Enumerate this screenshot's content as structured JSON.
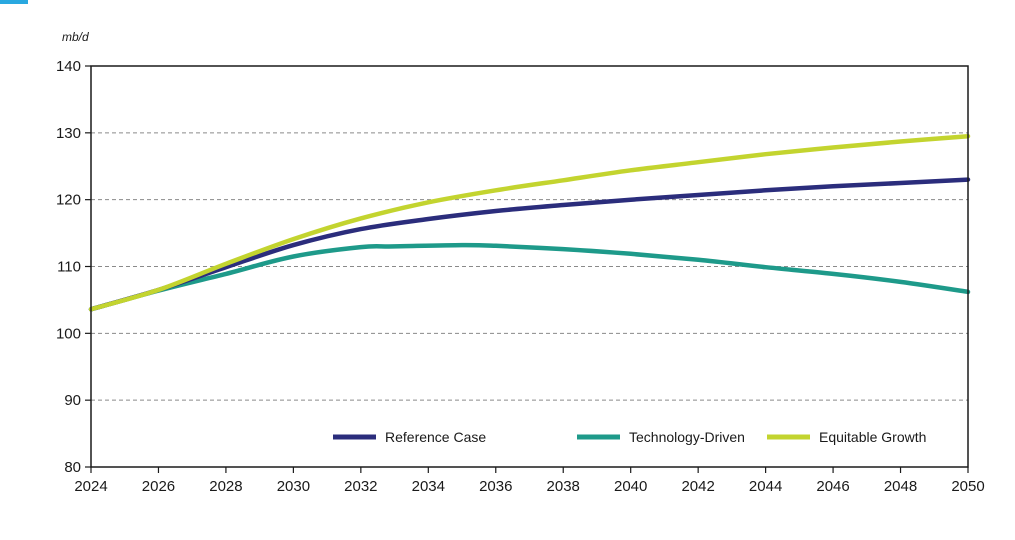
{
  "chart_data": {
    "type": "line",
    "ylabel": "mb/d",
    "xlim": [
      2024,
      2050
    ],
    "ylim": [
      80,
      140
    ],
    "x_ticks": [
      "2024",
      "2026",
      "2028",
      "2030",
      "2032",
      "2034",
      "2036",
      "2038",
      "2040",
      "2042",
      "2044",
      "2046",
      "2048",
      "2050"
    ],
    "y_ticks": [
      "80",
      "90",
      "100",
      "110",
      "120",
      "130",
      "140"
    ],
    "grid": "horizontal dashed",
    "legend_position": "bottom-right",
    "series": [
      {
        "name": "Reference Case",
        "color": "#2b2d7c",
        "x": [
          2024,
          2026,
          2028,
          2030,
          2032,
          2034,
          2036,
          2038,
          2040,
          2042,
          2044,
          2046,
          2048,
          2050
        ],
        "values": [
          103.6,
          106.5,
          109.9,
          113.2,
          115.6,
          117.1,
          118.3,
          119.2,
          120.0,
          120.7,
          121.4,
          122.0,
          122.5,
          123.0
        ]
      },
      {
        "name": "Technology-Driven",
        "color": "#1e9a8a",
        "x": [
          2024,
          2026,
          2028,
          2030,
          2032,
          2033,
          2035,
          2036,
          2038,
          2040,
          2042,
          2044,
          2046,
          2048,
          2050
        ],
        "values": [
          103.6,
          106.4,
          108.9,
          111.5,
          112.9,
          113.0,
          113.2,
          113.1,
          112.6,
          111.9,
          111.0,
          109.9,
          108.9,
          107.7,
          106.2
        ]
      },
      {
        "name": "Equitable Growth",
        "color": "#c3d42f",
        "x": [
          2024,
          2026,
          2028,
          2030,
          2032,
          2034,
          2036,
          2038,
          2040,
          2042,
          2044,
          2046,
          2048,
          2050
        ],
        "values": [
          103.6,
          106.5,
          110.4,
          114.1,
          117.2,
          119.6,
          121.4,
          122.9,
          124.4,
          125.6,
          126.8,
          127.8,
          128.7,
          129.5
        ]
      }
    ]
  }
}
